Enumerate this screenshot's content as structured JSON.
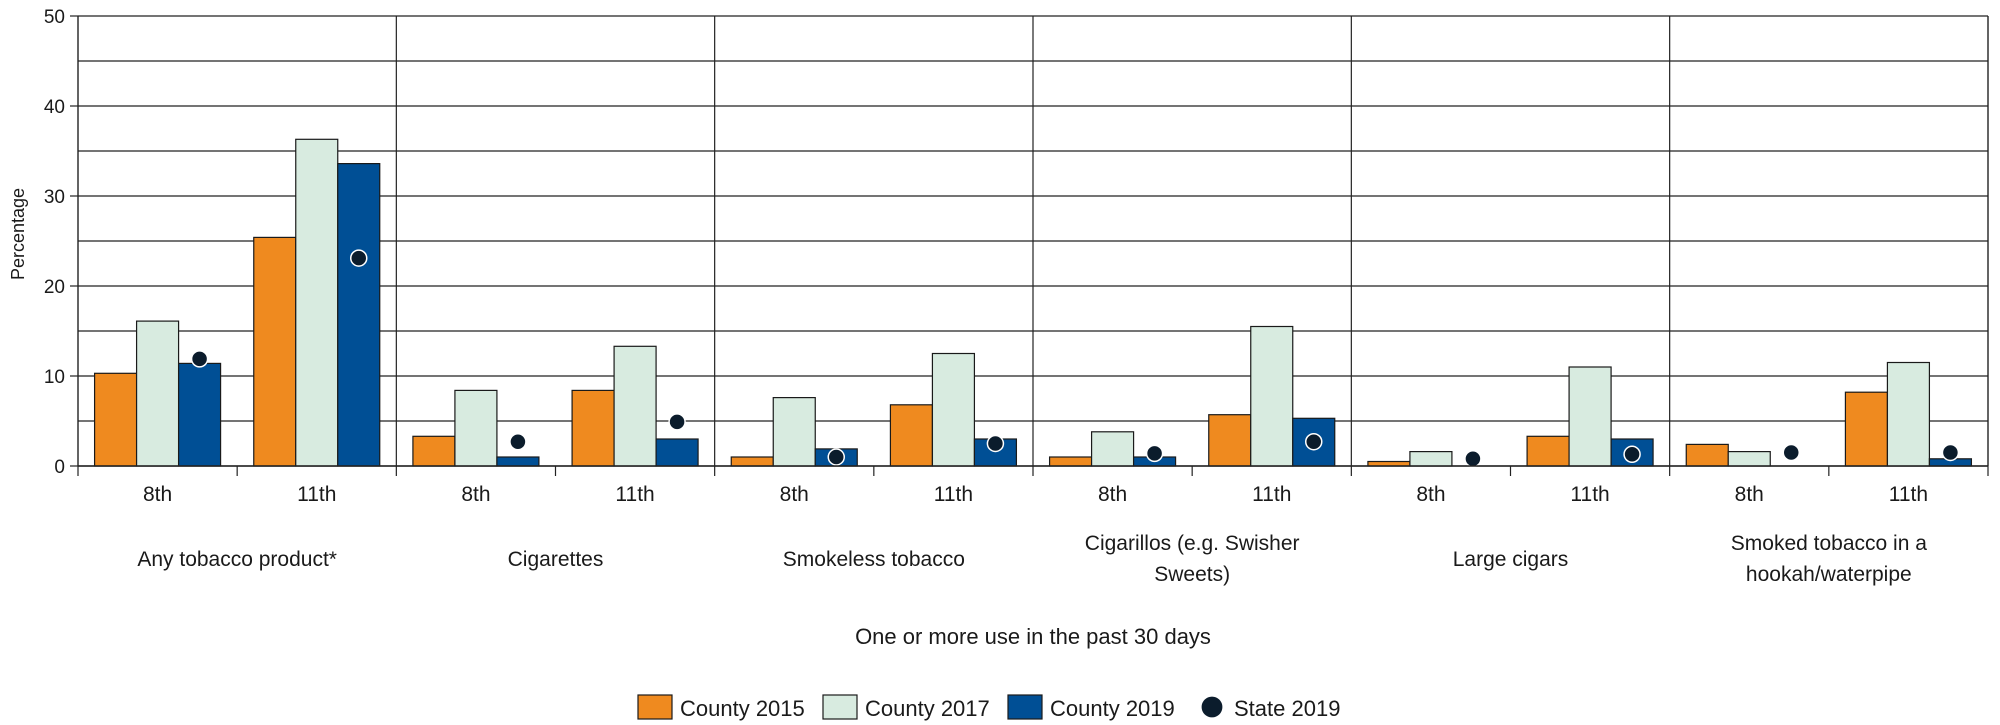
{
  "chart_data": {
    "type": "bar",
    "ylabel": "Percentage",
    "xlabel": "One or more use in the past 30 days",
    "ylim": [
      0,
      50
    ],
    "yticks": [
      "0",
      "10",
      "20",
      "30",
      "40",
      "50"
    ],
    "grid": true,
    "legend_position": "bottom",
    "groups": [
      {
        "lines": [
          "Any tobacco product*"
        ]
      },
      {
        "lines": [
          "Cigarettes"
        ]
      },
      {
        "lines": [
          "Smokeless tobacco"
        ]
      },
      {
        "lines": [
          "Cigarillos (e.g. Swisher",
          "Sweets)"
        ]
      },
      {
        "lines": [
          "Large cigars"
        ]
      },
      {
        "lines": [
          "Smoked tobacco in a",
          "hookah/waterpipe"
        ]
      }
    ],
    "subcategories": [
      "8th",
      "11th"
    ],
    "series": [
      {
        "name": "County 2015",
        "kind": "bar",
        "color": "#ef8a1f",
        "values": [
          10.3,
          25.4,
          3.3,
          8.4,
          1.0,
          6.8,
          1.0,
          5.7,
          0.5,
          3.3,
          2.4,
          8.2
        ]
      },
      {
        "name": "County 2017",
        "kind": "bar",
        "color": "#d8ebe0",
        "values": [
          16.1,
          36.3,
          8.4,
          13.3,
          7.6,
          12.5,
          3.8,
          15.5,
          1.6,
          11.0,
          1.6,
          11.5
        ]
      },
      {
        "name": "County 2019",
        "kind": "bar",
        "color": "#004f95",
        "values": [
          11.4,
          33.6,
          1.0,
          3.0,
          1.9,
          3.0,
          1.0,
          5.3,
          0,
          3.0,
          0,
          0.8
        ]
      },
      {
        "name": "State 2019",
        "kind": "point",
        "color": "#0b1c2c",
        "values": [
          11.9,
          23.1,
          2.7,
          4.9,
          1.0,
          2.5,
          1.4,
          2.7,
          0.8,
          1.3,
          1.5,
          1.5
        ]
      }
    ]
  }
}
